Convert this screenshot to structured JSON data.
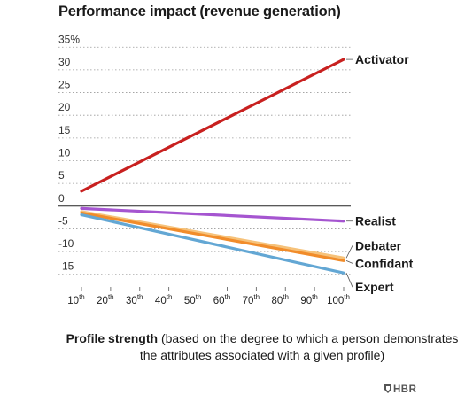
{
  "chart_data": {
    "type": "line",
    "title": "Performance impact (revenue generation)",
    "x_unit_suffix": "th",
    "x": [
      10,
      20,
      30,
      40,
      50,
      60,
      70,
      80,
      90,
      100
    ],
    "x_tick_labels": [
      "10",
      "20",
      "30",
      "40",
      "50",
      "60",
      "70",
      "80",
      "90",
      "100"
    ],
    "y_tick_labels": [
      "35%",
      "30",
      "25",
      "20",
      "15",
      "10",
      "5",
      "0",
      "-5",
      "-10",
      "-15"
    ],
    "y_ticks": [
      35,
      30,
      25,
      20,
      15,
      10,
      5,
      0,
      -5,
      -10,
      -15
    ],
    "ylim": [
      -17,
      37
    ],
    "xlim": [
      10,
      100
    ],
    "grid": "dotted horizontal",
    "legend": "direct labels at right end of each line",
    "series": [
      {
        "name": "Activator",
        "color": "#c8201f",
        "x": [
          10,
          100
        ],
        "y": [
          3.3,
          32.3
        ]
      },
      {
        "name": "Realist",
        "color": "#a555d0",
        "x": [
          10,
          100
        ],
        "y": [
          -0.5,
          -3.3
        ]
      },
      {
        "name": "Debater",
        "color": "#f6c27a",
        "x": [
          10,
          100
        ],
        "y": [
          -1.2,
          -11.4
        ]
      },
      {
        "name": "Confidant",
        "color": "#f18c2a",
        "x": [
          10,
          100
        ],
        "y": [
          -1.5,
          -12.0
        ]
      },
      {
        "name": "Expert",
        "color": "#63a7d4",
        "x": [
          10,
          100
        ],
        "y": [
          -1.9,
          -14.7
        ]
      }
    ]
  },
  "caption": {
    "bold": "Profile strength",
    "rest": " (based on the degree to which a person demonstrates the attributes associated with a given profile)"
  },
  "brand": {
    "text": "HBR"
  }
}
